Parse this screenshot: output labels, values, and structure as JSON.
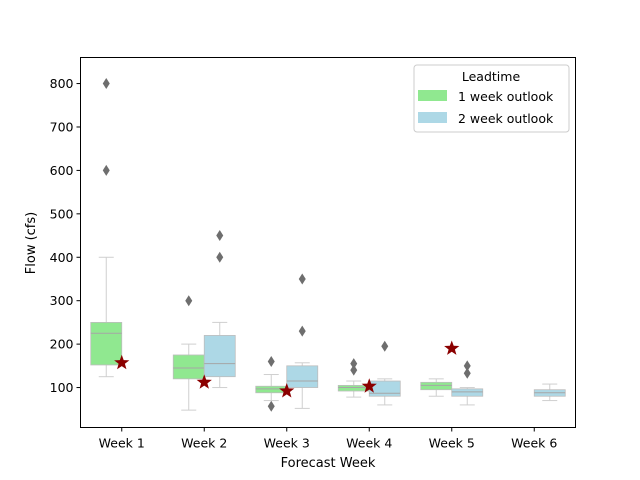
{
  "chart_data": {
    "type": "box",
    "xlabel": "Forecast Week",
    "ylabel": "Flow (cfs)",
    "ylim": [
      8,
      860
    ],
    "yticks": [
      100,
      200,
      300,
      400,
      500,
      600,
      700,
      800
    ],
    "categories": [
      "Week 1",
      "Week 2",
      "Week 3",
      "Week 4",
      "Week 5",
      "Week 6"
    ],
    "legend": {
      "title": "Leadtime",
      "position": "top-right",
      "entries": [
        "1 week outlook",
        "2 week outlook"
      ]
    },
    "series": [
      {
        "name": "1 week outlook",
        "color": "#90e890",
        "boxes": [
          {
            "category": "Week 1",
            "whislo": 125,
            "q1": 152,
            "med": 225,
            "q3": 250,
            "whishi": 400,
            "fliers": [
              600,
              800
            ]
          },
          {
            "category": "Week 2",
            "whislo": 48,
            "q1": 120,
            "med": 145,
            "q3": 175,
            "whishi": 200,
            "fliers": [
              300
            ]
          },
          {
            "category": "Week 3",
            "whislo": 70,
            "q1": 88,
            "med": 97,
            "q3": 103,
            "whishi": 130,
            "fliers": [
              160,
              57
            ]
          },
          {
            "category": "Week 4",
            "whislo": 78,
            "q1": 92,
            "med": 100,
            "q3": 105,
            "whishi": 115,
            "fliers": [
              155,
              140
            ]
          },
          {
            "category": "Week 5",
            "whislo": 80,
            "q1": 95,
            "med": 105,
            "q3": 112,
            "whishi": 120,
            "fliers": []
          }
        ]
      },
      {
        "name": "2 week outlook",
        "color": "#add8e6",
        "boxes": [
          {
            "category": "Week 2",
            "whislo": 100,
            "q1": 125,
            "med": 155,
            "q3": 220,
            "whishi": 250,
            "fliers": [
              450,
              400
            ]
          },
          {
            "category": "Week 3",
            "whislo": 52,
            "q1": 100,
            "med": 115,
            "q3": 150,
            "whishi": 157,
            "fliers": [
              350,
              230
            ]
          },
          {
            "category": "Week 4",
            "whislo": 60,
            "q1": 80,
            "med": 87,
            "q3": 115,
            "whishi": 120,
            "fliers": [
              195
            ]
          },
          {
            "category": "Week 5",
            "whislo": 60,
            "q1": 80,
            "med": 90,
            "q3": 97,
            "whishi": 100,
            "fliers": [
              150,
              133
            ]
          },
          {
            "category": "Week 6",
            "whislo": 70,
            "q1": 80,
            "med": 88,
            "q3": 95,
            "whishi": 108,
            "fliers": []
          }
        ]
      }
    ],
    "observed": {
      "marker": "star",
      "color": "#8b0000",
      "points": [
        {
          "category": "Week 1",
          "value": 157
        },
        {
          "category": "Week 2",
          "value": 112
        },
        {
          "category": "Week 3",
          "value": 92
        },
        {
          "category": "Week 4",
          "value": 103
        },
        {
          "category": "Week 5",
          "value": 190
        }
      ]
    }
  }
}
